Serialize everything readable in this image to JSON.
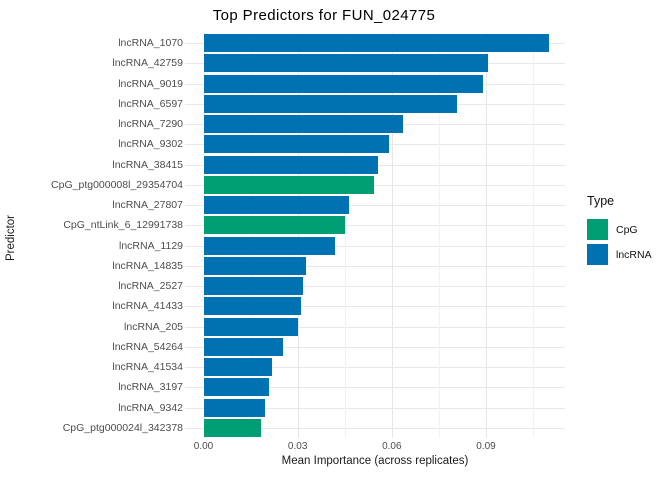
{
  "chart_data": {
    "type": "bar",
    "orientation": "horizontal",
    "title": "Top Predictors for FUN_024775",
    "xlabel": "Mean Importance (across replicates)",
    "ylabel": "Predictor",
    "xlim": [
      -0.006,
      0.1155
    ],
    "x_major_ticks": [
      0.0,
      0.03,
      0.06,
      0.09
    ],
    "x_tick_labels": [
      "0.00",
      "0.03",
      "0.06",
      "0.09"
    ],
    "x_minor_ticks": [
      0.015,
      0.045,
      0.075,
      0.105
    ],
    "grid": "major+minor, light gray on white",
    "legend_position": "right",
    "colors": {
      "CpG": "#009E73",
      "lncRNA": "#0072B2"
    },
    "legend": {
      "title": "Type",
      "items": [
        {
          "label": "CpG",
          "type": "CpG",
          "color": "#009E73"
        },
        {
          "label": "lncRNA",
          "type": "lncRNA",
          "color": "#0072B2"
        }
      ]
    },
    "bars": [
      {
        "label": "lncRNA_1070",
        "type": "lncRNA",
        "value": 0.11
      },
      {
        "label": "lncRNA_42759",
        "type": "lncRNA",
        "value": 0.0905
      },
      {
        "label": "lncRNA_9019",
        "type": "lncRNA",
        "value": 0.089
      },
      {
        "label": "lncRNA_6597",
        "type": "lncRNA",
        "value": 0.0809
      },
      {
        "label": "lncRNA_7290",
        "type": "lncRNA",
        "value": 0.0637
      },
      {
        "label": "lncRNA_9302",
        "type": "lncRNA",
        "value": 0.059
      },
      {
        "label": "lncRNA_38415",
        "type": "lncRNA",
        "value": 0.0555
      },
      {
        "label": "CpG_ptg000008l_29354704",
        "type": "CpG",
        "value": 0.0543
      },
      {
        "label": "lncRNA_27807",
        "type": "lncRNA",
        "value": 0.0462
      },
      {
        "label": "CpG_ntLink_6_12991738",
        "type": "CpG",
        "value": 0.0451
      },
      {
        "label": "lncRNA_1129",
        "type": "lncRNA",
        "value": 0.0418
      },
      {
        "label": "lncRNA_14835",
        "type": "lncRNA",
        "value": 0.0326
      },
      {
        "label": "lncRNA_2527",
        "type": "lncRNA",
        "value": 0.0317
      },
      {
        "label": "lncRNA_41433",
        "type": "lncRNA",
        "value": 0.0311
      },
      {
        "label": "lncRNA_205",
        "type": "lncRNA",
        "value": 0.0301
      },
      {
        "label": "lncRNA_54264",
        "type": "lncRNA",
        "value": 0.0253
      },
      {
        "label": "lncRNA_41534",
        "type": "lncRNA",
        "value": 0.0219
      },
      {
        "label": "lncRNA_3197",
        "type": "lncRNA",
        "value": 0.0209
      },
      {
        "label": "lncRNA_9342",
        "type": "lncRNA",
        "value": 0.0196
      },
      {
        "label": "CpG_ptg000024l_342378",
        "type": "CpG",
        "value": 0.0183
      }
    ]
  }
}
